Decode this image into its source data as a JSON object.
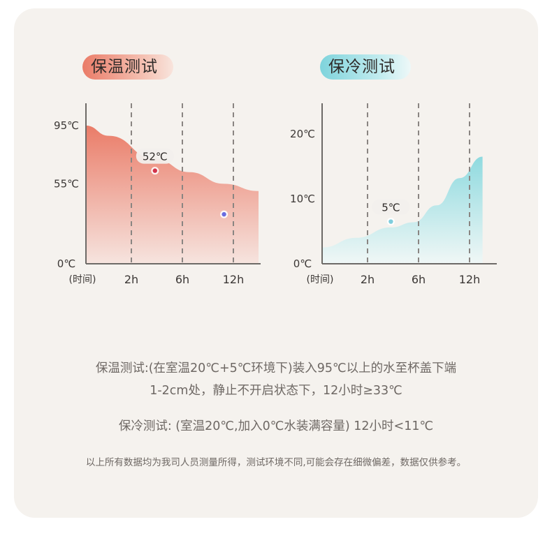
{
  "chart_data": [
    {
      "type": "area",
      "title": "保温测试",
      "xlabel": "(时间)",
      "x_ticks": [
        "2h",
        "6h",
        "12h"
      ],
      "y_ticks": [
        "95℃",
        "55℃",
        "0℃"
      ],
      "y_tick_values": [
        95,
        55,
        0
      ],
      "ylim": [
        0,
        95
      ],
      "x_range_hours": [
        0,
        15
      ],
      "points": [
        {
          "x": 0,
          "y": 95
        },
        {
          "x": 2,
          "y": 88
        },
        {
          "x": 6,
          "y": 72
        },
        {
          "x": 9,
          "y": 63
        },
        {
          "x": 12,
          "y": 55
        },
        {
          "x": 15,
          "y": 50
        }
      ],
      "markers": [
        {
          "x": 6,
          "y": 64,
          "label": "52℃",
          "color": "#d2344a"
        },
        {
          "x": 12,
          "y": 34,
          "label": "",
          "color": "#6a6de0"
        }
      ],
      "colors": {
        "top": "#ea7c68",
        "bottom": "#f6e4df"
      }
    },
    {
      "type": "area",
      "title": "保冷测试",
      "xlabel": "(时间)",
      "x_ticks": [
        "2h",
        "6h",
        "12h"
      ],
      "y_ticks": [
        "20℃",
        "10℃",
        "0℃"
      ],
      "y_tick_values": [
        20,
        10,
        0
      ],
      "ylim": [
        0,
        20
      ],
      "x_range_hours": [
        0,
        15
      ],
      "points": [
        {
          "x": 0,
          "y": 2.5
        },
        {
          "x": 3,
          "y": 4
        },
        {
          "x": 6,
          "y": 5.6
        },
        {
          "x": 8,
          "y": 6.4
        },
        {
          "x": 10,
          "y": 9
        },
        {
          "x": 12,
          "y": 13.2
        },
        {
          "x": 14,
          "y": 16.5
        }
      ],
      "markers": [
        {
          "x": 6,
          "y": 6.5,
          "label": "5℃",
          "color": "#7fcddd"
        }
      ],
      "colors": {
        "top": "#8fdadf",
        "bottom": "#f0f7f6"
      }
    }
  ],
  "notes": {
    "line1": "保温测试:(在室温20℃+5℃环境下)装入95℃以上的水至杯盖下端",
    "line2": "1-2cm处，静止不开启状态下，12小时≥33℃",
    "line3": "保冷测试: (室温20℃,加入0℃水装满容量) 12小时<11℃",
    "line4": "以上所有数据均为我司人员测量所得，测试环境不同,可能会存在细微偏差，数据仅供参考。"
  }
}
